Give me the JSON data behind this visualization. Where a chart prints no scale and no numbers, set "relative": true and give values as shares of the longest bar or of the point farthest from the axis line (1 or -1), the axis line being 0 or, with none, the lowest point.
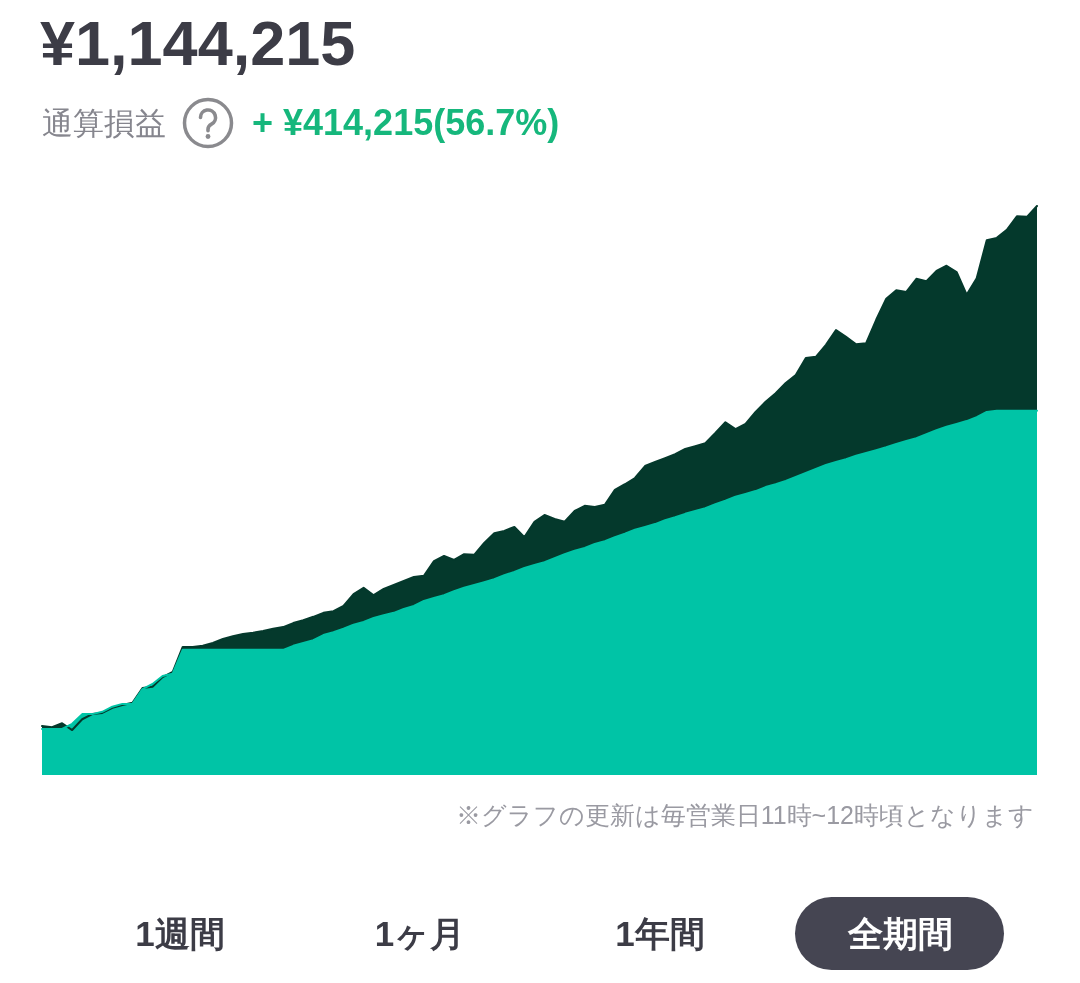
{
  "chart_data": {
    "type": "area",
    "title": "¥1,144,215",
    "subtitle": "通算損益",
    "annotations": [
      "+ ¥414,215(56.7%)",
      "※グラフの更新は毎営業日11時~12時頃となります",
      "1週間",
      "1ヶ月",
      "1年間",
      "全期間"
    ],
    "relative": true,
    "marker": "none",
    "categories": [
      null,
      null,
      null,
      null,
      null,
      null,
      null,
      null,
      null,
      null,
      null,
      null,
      null,
      null,
      null,
      null,
      null,
      null,
      null,
      null,
      null,
      null,
      null,
      null,
      null,
      null,
      null,
      null,
      null,
      null,
      null,
      null,
      null,
      null,
      null,
      null,
      null,
      null,
      null,
      null,
      null,
      null,
      null,
      null,
      null,
      null,
      null,
      null,
      null,
      null,
      null,
      null,
      null,
      null,
      null,
      null,
      null,
      null,
      null,
      null,
      null,
      null,
      null,
      null,
      null,
      null,
      null,
      null,
      null,
      null,
      null,
      null,
      null,
      null,
      null,
      null,
      null,
      null,
      null,
      null,
      null,
      null,
      null,
      null,
      null,
      null,
      null,
      null,
      null,
      null,
      null,
      null,
      null,
      null,
      null,
      null,
      null,
      null,
      null,
      null
    ],
    "series": [
      {
        "color": "#04392c",
        "values": [
          0.086,
          0.084,
          0.091,
          0.079,
          0.098,
          0.107,
          0.109,
          0.118,
          0.123,
          0.127,
          0.153,
          0.155,
          0.172,
          0.181,
          0.225,
          0.225,
          0.227,
          0.232,
          0.239,
          0.244,
          0.248,
          0.25,
          0.253,
          0.257,
          0.26,
          0.267,
          0.272,
          0.278,
          0.285,
          0.288,
          0.297,
          0.318,
          0.329,
          0.316,
          0.327,
          0.334,
          0.341,
          0.348,
          0.35,
          0.376,
          0.385,
          0.378,
          0.388,
          0.387,
          0.408,
          0.425,
          0.429,
          0.436,
          0.418,
          0.445,
          0.457,
          0.45,
          0.445,
          0.464,
          0.473,
          0.471,
          0.475,
          0.501,
          0.511,
          0.522,
          0.543,
          0.55,
          0.557,
          0.564,
          0.573,
          0.578,
          0.583,
          0.601,
          0.62,
          0.608,
          0.617,
          0.638,
          0.656,
          0.671,
          0.689,
          0.703,
          0.733,
          0.735,
          0.756,
          0.782,
          0.77,
          0.757,
          0.759,
          0.8,
          0.837,
          0.852,
          0.849,
          0.872,
          0.868,
          0.886,
          0.895,
          0.884,
          0.844,
          0.873,
          0.94,
          0.944,
          0.958,
          0.982,
          0.981,
          1
        ]
      },
      {
        "color": "#00c4a6",
        "values": [
          0.081,
          0.081,
          0.081,
          0.09,
          0.107,
          0.107,
          0.111,
          0.12,
          0.125,
          0.125,
          0.151,
          0.16,
          0.174,
          0.178,
          0.22,
          0.22,
          0.22,
          0.22,
          0.22,
          0.22,
          0.22,
          0.22,
          0.22,
          0.22,
          0.22,
          0.227,
          0.232,
          0.237,
          0.246,
          0.251,
          0.257,
          0.264,
          0.269,
          0.276,
          0.281,
          0.285,
          0.292,
          0.297,
          0.306,
          0.311,
          0.316,
          0.323,
          0.329,
          0.334,
          0.339,
          0.344,
          0.351,
          0.357,
          0.364,
          0.369,
          0.374,
          0.381,
          0.388,
          0.394,
          0.399,
          0.406,
          0.411,
          0.418,
          0.424,
          0.431,
          0.436,
          0.441,
          0.448,
          0.453,
          0.459,
          0.464,
          0.469,
          0.476,
          0.482,
          0.489,
          0.494,
          0.499,
          0.506,
          0.511,
          0.517,
          0.524,
          0.531,
          0.538,
          0.545,
          0.55,
          0.555,
          0.561,
          0.566,
          0.571,
          0.576,
          0.582,
          0.587,
          0.592,
          0.599,
          0.606,
          0.612,
          0.617,
          0.622,
          0.629,
          0.638,
          0.64,
          0.64,
          0.64,
          0.64,
          0.64
        ]
      }
    ]
  }
}
